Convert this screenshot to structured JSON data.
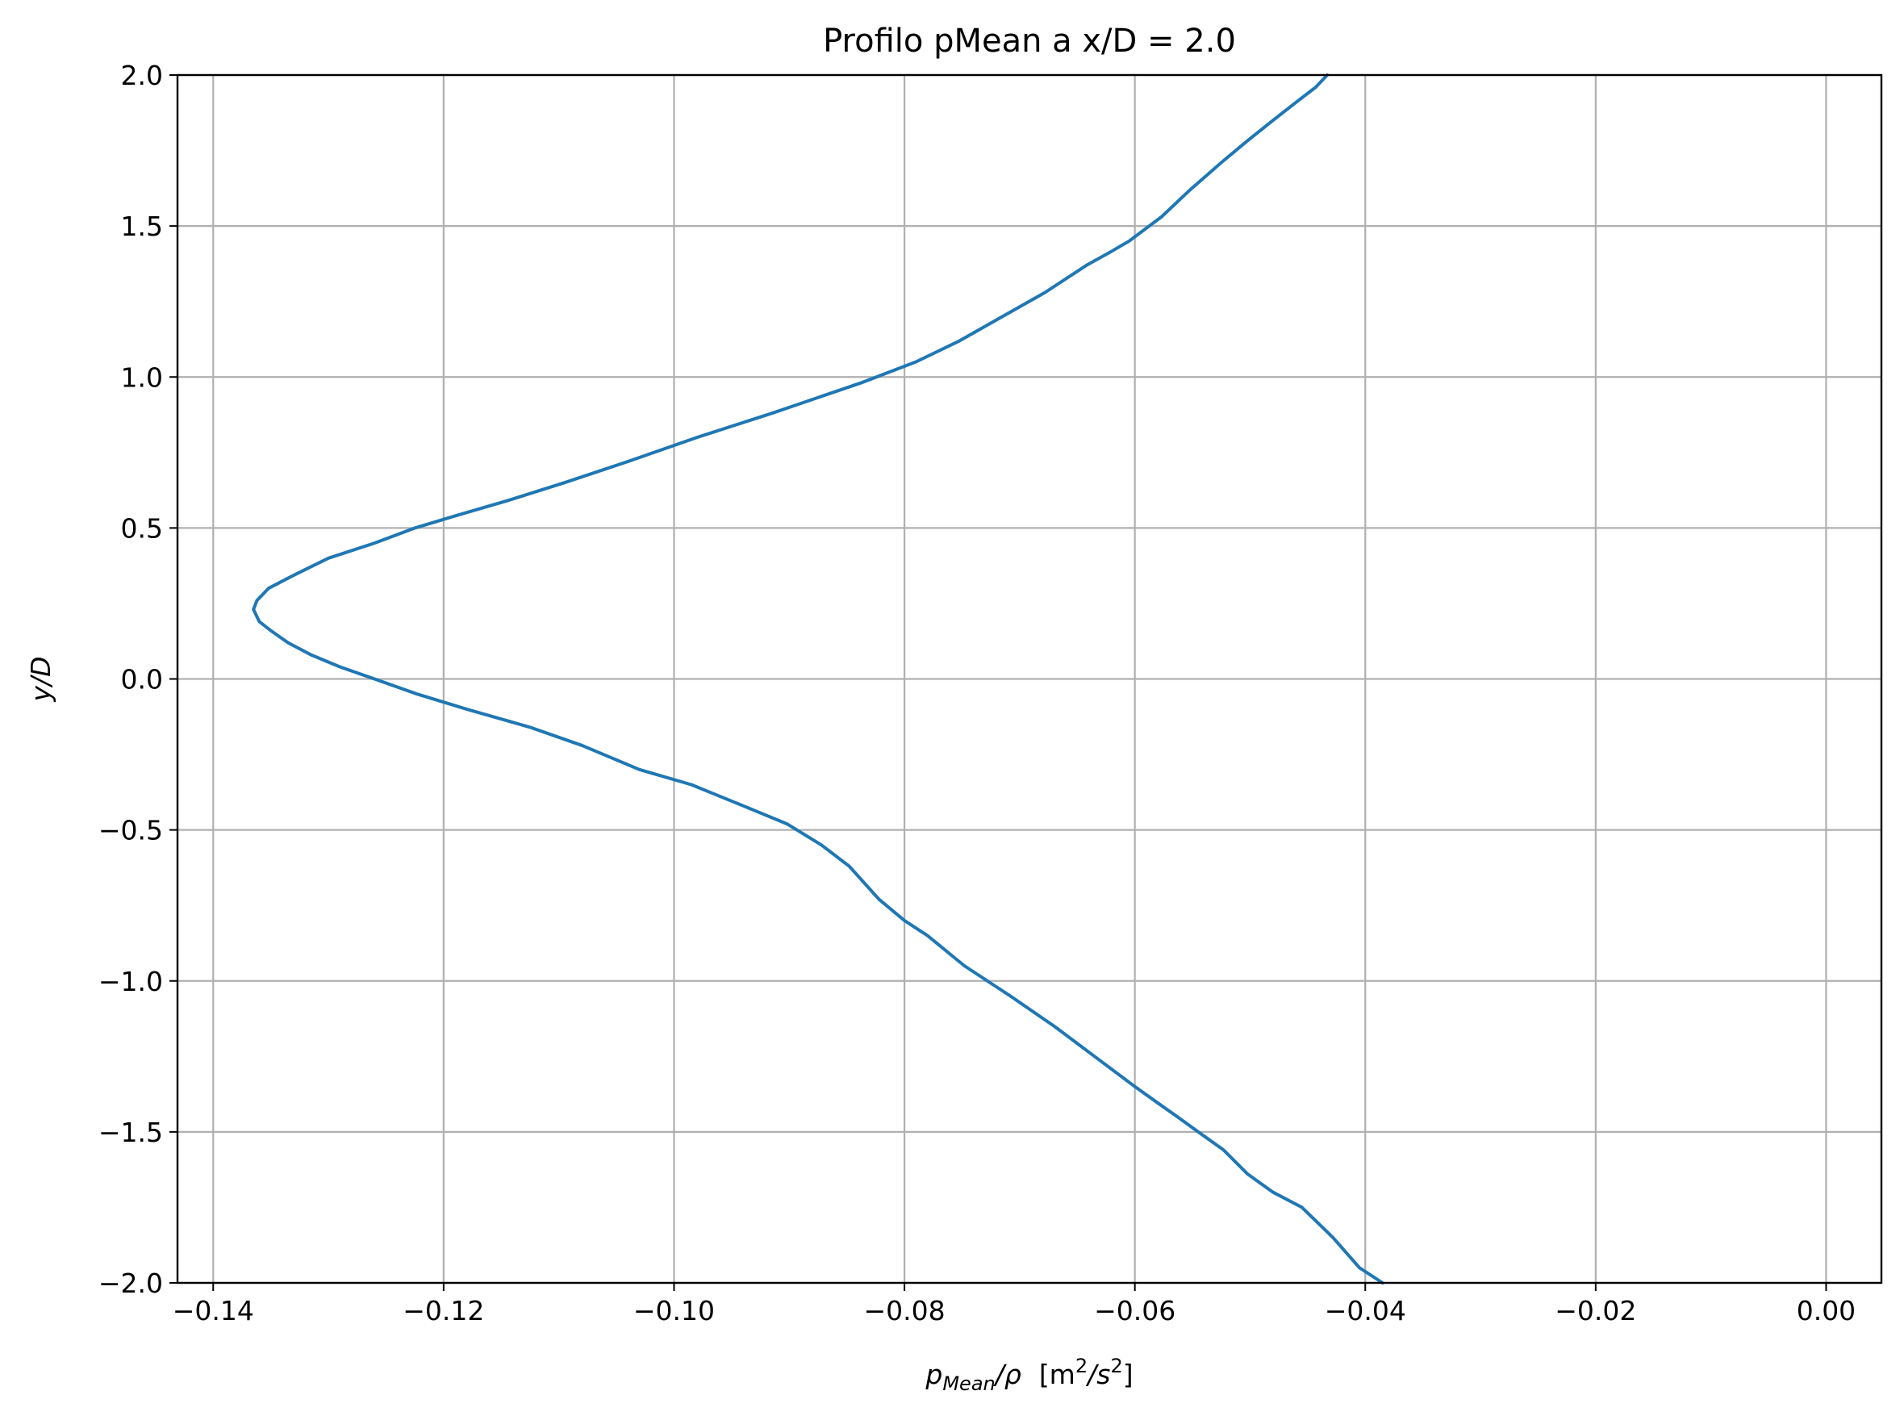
{
  "chart_data": {
    "type": "line",
    "title": "Profilo pMean a x/D = 2.0",
    "xlabel": {
      "symbol": "p",
      "subscript": "Mean",
      "rest": "/ρ",
      "units_prefix": "[m",
      "units_sup1": "2",
      "units_mid": "/s",
      "units_sup2": "2",
      "units_suffix": "]"
    },
    "ylabel": "y/D",
    "xlim": [
      -0.1431,
      0.0048
    ],
    "ylim": [
      -2.0,
      2.0
    ],
    "xticks": [
      -0.14,
      -0.12,
      -0.1,
      -0.08,
      -0.06,
      -0.04,
      -0.02,
      0.0
    ],
    "xtick_labels": [
      "−0.14",
      "−0.12",
      "−0.10",
      "−0.08",
      "−0.06",
      "−0.04",
      "−0.02",
      "0.00"
    ],
    "yticks": [
      2.0,
      1.5,
      1.0,
      0.5,
      0.0,
      -0.5,
      -1.0,
      -1.5,
      -2.0
    ],
    "ytick_labels": [
      "2.0",
      "1.5",
      "1.0",
      "0.5",
      "0.0",
      "−0.5",
      "−1.0",
      "−1.5",
      "−2.0"
    ],
    "grid": true,
    "color": "#1f77b4",
    "series": [
      {
        "x": [
          -0.0385,
          -0.0405,
          -0.0428,
          -0.0455,
          -0.048,
          -0.0502,
          -0.0523,
          -0.0545,
          -0.0563,
          -0.0578,
          -0.06,
          -0.0635,
          -0.067,
          -0.0708,
          -0.0748,
          -0.078,
          -0.08,
          -0.0822,
          -0.0848,
          -0.0872,
          -0.0902,
          -0.094,
          -0.0985,
          -0.103,
          -0.108,
          -0.1125,
          -0.118,
          -0.1223,
          -0.126,
          -0.129,
          -0.1315,
          -0.1335,
          -0.135,
          -0.136,
          -0.1365,
          -0.1362,
          -0.1352,
          -0.1332,
          -0.13,
          -0.126,
          -0.1225,
          -0.119,
          -0.1145,
          -0.1095,
          -0.104,
          -0.098,
          -0.0915,
          -0.0838,
          -0.079,
          -0.0752,
          -0.0715,
          -0.0678,
          -0.0642,
          -0.0623,
          -0.0605,
          -0.0577,
          -0.0552,
          -0.0525,
          -0.0503,
          -0.048,
          -0.046,
          -0.0443,
          -0.0433
        ],
        "y": [
          -2.0,
          -1.95,
          -1.85,
          -1.75,
          -1.7,
          -1.64,
          -1.56,
          -1.5,
          -1.45,
          -1.41,
          -1.35,
          -1.25,
          -1.15,
          -1.05,
          -0.95,
          -0.85,
          -0.8,
          -0.73,
          -0.62,
          -0.55,
          -0.48,
          -0.42,
          -0.35,
          -0.3,
          -0.22,
          -0.16,
          -0.1,
          -0.05,
          0.0,
          0.04,
          0.08,
          0.12,
          0.16,
          0.19,
          0.23,
          0.26,
          0.3,
          0.34,
          0.4,
          0.45,
          0.5,
          0.54,
          0.59,
          0.65,
          0.72,
          0.8,
          0.88,
          0.98,
          1.05,
          1.12,
          1.2,
          1.28,
          1.37,
          1.41,
          1.45,
          1.53,
          1.62,
          1.71,
          1.78,
          1.85,
          1.91,
          1.96,
          2.0
        ]
      }
    ]
  }
}
